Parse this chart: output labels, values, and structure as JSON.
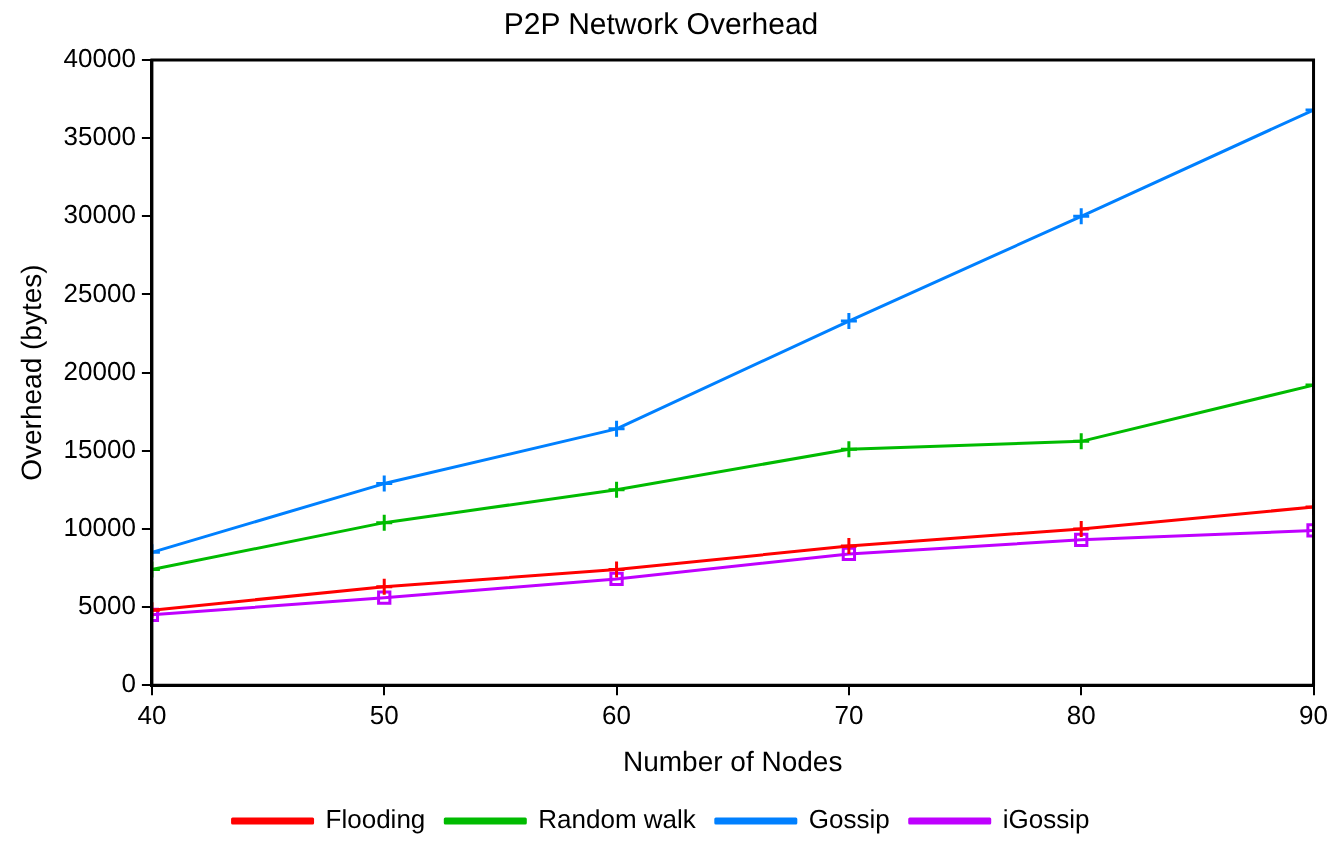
{
  "chart_data": {
    "type": "line",
    "title": "P2P Network Overhead",
    "xlabel": "Number of Nodes",
    "ylabel": "Overhead (bytes)",
    "x": [
      40,
      50,
      60,
      70,
      80,
      90
    ],
    "xlim": [
      40,
      90
    ],
    "xticks": [
      40,
      50,
      60,
      70,
      80,
      90
    ],
    "ylim": [
      0,
      40000
    ],
    "yticks": [
      0,
      5000,
      10000,
      15000,
      20000,
      25000,
      30000,
      35000,
      40000
    ],
    "grid": false,
    "legend": "bottom",
    "line_style": "solid",
    "series": [
      {
        "name": "Flooding",
        "color": "#ff0000",
        "marker": "cross",
        "values": [
          4800,
          6300,
          7400,
          8900,
          10000,
          11400
        ]
      },
      {
        "name": "Random walk",
        "color": "#00bb00",
        "marker": "cross",
        "values": [
          7400,
          10400,
          12500,
          15100,
          15600,
          19200
        ]
      },
      {
        "name": "Gossip",
        "color": "#0080ff",
        "marker": "cross",
        "values": [
          8500,
          12900,
          16400,
          23300,
          30000,
          36800
        ]
      },
      {
        "name": "iGossip",
        "color": "#bf00ff",
        "marker": "square",
        "values": [
          4500,
          5600,
          6800,
          8400,
          9300,
          9900
        ]
      }
    ]
  }
}
